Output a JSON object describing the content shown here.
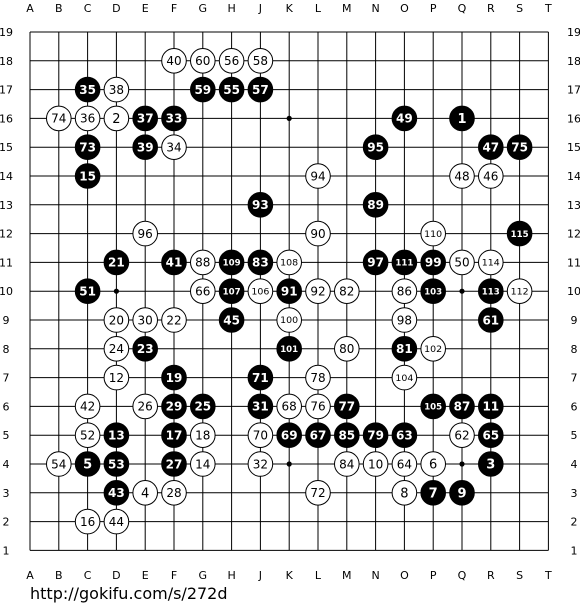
{
  "board": {
    "columns": [
      "A",
      "B",
      "C",
      "D",
      "E",
      "F",
      "G",
      "H",
      "J",
      "K",
      "L",
      "M",
      "N",
      "O",
      "P",
      "Q",
      "R",
      "S",
      "T"
    ],
    "rows": [
      "19",
      "18",
      "17",
      "16",
      "15",
      "14",
      "13",
      "12",
      "11",
      "10",
      "9",
      "8",
      "7",
      "6",
      "5",
      "4",
      "3",
      "2",
      "1"
    ],
    "colors": {
      "line": "#000000",
      "black_stone": "#000000",
      "white_stone": "#ffffff",
      "black_text": "#ffffff",
      "white_text": "#000000"
    },
    "hoshi": [
      [
        3,
        3
      ],
      [
        9,
        3
      ],
      [
        15,
        3
      ],
      [
        3,
        9
      ],
      [
        9,
        9
      ],
      [
        15,
        9
      ],
      [
        3,
        15
      ],
      [
        9,
        15
      ],
      [
        15,
        15
      ]
    ],
    "stones": [
      {
        "col": "C",
        "row": "17",
        "color": "black",
        "label": "35"
      },
      {
        "col": "C",
        "row": "15",
        "color": "black",
        "label": "73"
      },
      {
        "col": "C",
        "row": "14",
        "color": "black",
        "label": "15"
      },
      {
        "col": "C",
        "row": "10",
        "color": "black",
        "label": "51"
      },
      {
        "col": "C",
        "row": "4",
        "color": "black",
        "label": "5"
      },
      {
        "col": "D",
        "row": "11",
        "color": "black",
        "label": "21"
      },
      {
        "col": "D",
        "row": "5",
        "color": "black",
        "label": "13"
      },
      {
        "col": "D",
        "row": "4",
        "color": "black",
        "label": "53"
      },
      {
        "col": "D",
        "row": "3",
        "color": "black",
        "label": "43"
      },
      {
        "col": "E",
        "row": "16",
        "color": "black",
        "label": "37"
      },
      {
        "col": "E",
        "row": "15",
        "color": "black",
        "label": "39"
      },
      {
        "col": "E",
        "row": "8",
        "color": "black",
        "label": "23"
      },
      {
        "col": "F",
        "row": "16",
        "color": "black",
        "label": "33"
      },
      {
        "col": "F",
        "row": "11",
        "color": "black",
        "label": "41"
      },
      {
        "col": "F",
        "row": "7",
        "color": "black",
        "label": "19"
      },
      {
        "col": "F",
        "row": "6",
        "color": "black",
        "label": "29"
      },
      {
        "col": "F",
        "row": "5",
        "color": "black",
        "label": "17"
      },
      {
        "col": "F",
        "row": "4",
        "color": "black",
        "label": "27"
      },
      {
        "col": "G",
        "row": "17",
        "color": "black",
        "label": "59"
      },
      {
        "col": "G",
        "row": "6",
        "color": "black",
        "label": "25"
      },
      {
        "col": "H",
        "row": "17",
        "color": "black",
        "label": "55"
      },
      {
        "col": "H",
        "row": "11",
        "color": "black",
        "label": "109"
      },
      {
        "col": "H",
        "row": "10",
        "color": "black",
        "label": "107"
      },
      {
        "col": "H",
        "row": "9",
        "color": "black",
        "label": "45"
      },
      {
        "col": "J",
        "row": "17",
        "color": "black",
        "label": "57"
      },
      {
        "col": "J",
        "row": "13",
        "color": "black",
        "label": "93"
      },
      {
        "col": "J",
        "row": "11",
        "color": "black",
        "label": "83"
      },
      {
        "col": "J",
        "row": "7",
        "color": "black",
        "label": "71"
      },
      {
        "col": "J",
        "row": "6",
        "color": "black",
        "label": "31"
      },
      {
        "col": "K",
        "row": "10",
        "color": "black",
        "label": "91"
      },
      {
        "col": "K",
        "row": "8",
        "color": "black",
        "label": "101"
      },
      {
        "col": "K",
        "row": "5",
        "color": "black",
        "label": "69"
      },
      {
        "col": "L",
        "row": "5",
        "color": "black",
        "label": "67"
      },
      {
        "col": "M",
        "row": "6",
        "color": "black",
        "label": "77"
      },
      {
        "col": "M",
        "row": "5",
        "color": "black",
        "label": "85"
      },
      {
        "col": "N",
        "row": "15",
        "color": "black",
        "label": "95"
      },
      {
        "col": "N",
        "row": "13",
        "color": "black",
        "label": "89"
      },
      {
        "col": "N",
        "row": "11",
        "color": "black",
        "label": "97"
      },
      {
        "col": "N",
        "row": "5",
        "color": "black",
        "label": "79"
      },
      {
        "col": "O",
        "row": "16",
        "color": "black",
        "label": "49"
      },
      {
        "col": "O",
        "row": "11",
        "color": "black",
        "label": "111"
      },
      {
        "col": "O",
        "row": "8",
        "color": "black",
        "label": "81"
      },
      {
        "col": "O",
        "row": "5",
        "color": "black",
        "label": "63"
      },
      {
        "col": "P",
        "row": "11",
        "color": "black",
        "label": "99"
      },
      {
        "col": "P",
        "row": "10",
        "color": "black",
        "label": "103"
      },
      {
        "col": "P",
        "row": "6",
        "color": "black",
        "label": "105"
      },
      {
        "col": "P",
        "row": "3",
        "color": "black",
        "label": "7"
      },
      {
        "col": "Q",
        "row": "16",
        "color": "black",
        "label": "1"
      },
      {
        "col": "Q",
        "row": "6",
        "color": "black",
        "label": "87"
      },
      {
        "col": "Q",
        "row": "3",
        "color": "black",
        "label": "9"
      },
      {
        "col": "R",
        "row": "15",
        "color": "black",
        "label": "47"
      },
      {
        "col": "R",
        "row": "10",
        "color": "black",
        "label": "113"
      },
      {
        "col": "R",
        "row": "9",
        "color": "black",
        "label": "61"
      },
      {
        "col": "R",
        "row": "6",
        "color": "black",
        "label": "11"
      },
      {
        "col": "R",
        "row": "5",
        "color": "black",
        "label": "65"
      },
      {
        "col": "R",
        "row": "4",
        "color": "black",
        "label": "3"
      },
      {
        "col": "S",
        "row": "15",
        "color": "black",
        "label": "75"
      },
      {
        "col": "S",
        "row": "12",
        "color": "black",
        "label": "115"
      },
      {
        "col": "B",
        "row": "16",
        "color": "white",
        "label": "74"
      },
      {
        "col": "B",
        "row": "4",
        "color": "white",
        "label": "54"
      },
      {
        "col": "C",
        "row": "16",
        "color": "white",
        "label": "36"
      },
      {
        "col": "C",
        "row": "6",
        "color": "white",
        "label": "42"
      },
      {
        "col": "C",
        "row": "5",
        "color": "white",
        "label": "52"
      },
      {
        "col": "C",
        "row": "2",
        "color": "white",
        "label": "16"
      },
      {
        "col": "D",
        "row": "17",
        "color": "white",
        "label": "38"
      },
      {
        "col": "D",
        "row": "16",
        "color": "white",
        "label": "2"
      },
      {
        "col": "D",
        "row": "9",
        "color": "white",
        "label": "20"
      },
      {
        "col": "D",
        "row": "8",
        "color": "white",
        "label": "24"
      },
      {
        "col": "D",
        "row": "7",
        "color": "white",
        "label": "12"
      },
      {
        "col": "D",
        "row": "2",
        "color": "white",
        "label": "44"
      },
      {
        "col": "E",
        "row": "12",
        "color": "white",
        "label": "96"
      },
      {
        "col": "E",
        "row": "9",
        "color": "white",
        "label": "30"
      },
      {
        "col": "E",
        "row": "6",
        "color": "white",
        "label": "26"
      },
      {
        "col": "E",
        "row": "3",
        "color": "white",
        "label": "4"
      },
      {
        "col": "F",
        "row": "18",
        "color": "white",
        "label": "40"
      },
      {
        "col": "F",
        "row": "15",
        "color": "white",
        "label": "34"
      },
      {
        "col": "F",
        "row": "9",
        "color": "white",
        "label": "22"
      },
      {
        "col": "F",
        "row": "3",
        "color": "white",
        "label": "28"
      },
      {
        "col": "G",
        "row": "18",
        "color": "white",
        "label": "60"
      },
      {
        "col": "G",
        "row": "11",
        "color": "white",
        "label": "88"
      },
      {
        "col": "G",
        "row": "10",
        "color": "white",
        "label": "66"
      },
      {
        "col": "G",
        "row": "5",
        "color": "white",
        "label": "18"
      },
      {
        "col": "G",
        "row": "4",
        "color": "white",
        "label": "14"
      },
      {
        "col": "H",
        "row": "18",
        "color": "white",
        "label": "56"
      },
      {
        "col": "J",
        "row": "18",
        "color": "white",
        "label": "58"
      },
      {
        "col": "J",
        "row": "10",
        "color": "white",
        "label": "106"
      },
      {
        "col": "J",
        "row": "5",
        "color": "white",
        "label": "70"
      },
      {
        "col": "J",
        "row": "4",
        "color": "white",
        "label": "32"
      },
      {
        "col": "K",
        "row": "11",
        "color": "white",
        "label": "108"
      },
      {
        "col": "K",
        "row": "9",
        "color": "white",
        "label": "100"
      },
      {
        "col": "K",
        "row": "6",
        "color": "white",
        "label": "68"
      },
      {
        "col": "L",
        "row": "14",
        "color": "white",
        "label": "94"
      },
      {
        "col": "L",
        "row": "12",
        "color": "white",
        "label": "90"
      },
      {
        "col": "L",
        "row": "10",
        "color": "white",
        "label": "92"
      },
      {
        "col": "L",
        "row": "7",
        "color": "white",
        "label": "78"
      },
      {
        "col": "L",
        "row": "6",
        "color": "white",
        "label": "76"
      },
      {
        "col": "L",
        "row": "3",
        "color": "white",
        "label": "72"
      },
      {
        "col": "M",
        "row": "10",
        "color": "white",
        "label": "82"
      },
      {
        "col": "M",
        "row": "8",
        "color": "white",
        "label": "80"
      },
      {
        "col": "M",
        "row": "4",
        "color": "white",
        "label": "84"
      },
      {
        "col": "N",
        "row": "4",
        "color": "white",
        "label": "10"
      },
      {
        "col": "O",
        "row": "10",
        "color": "white",
        "label": "86"
      },
      {
        "col": "O",
        "row": "9",
        "color": "white",
        "label": "98"
      },
      {
        "col": "O",
        "row": "7",
        "color": "white",
        "label": "104"
      },
      {
        "col": "O",
        "row": "4",
        "color": "white",
        "label": "64"
      },
      {
        "col": "O",
        "row": "3",
        "color": "white",
        "label": "8"
      },
      {
        "col": "P",
        "row": "12",
        "color": "white",
        "label": "110"
      },
      {
        "col": "P",
        "row": "8",
        "color": "white",
        "label": "102"
      },
      {
        "col": "P",
        "row": "4",
        "color": "white",
        "label": "6"
      },
      {
        "col": "Q",
        "row": "14",
        "color": "white",
        "label": "48"
      },
      {
        "col": "Q",
        "row": "11",
        "color": "white",
        "label": "50"
      },
      {
        "col": "Q",
        "row": "5",
        "color": "white",
        "label": "62"
      },
      {
        "col": "R",
        "row": "14",
        "color": "white",
        "label": "46"
      },
      {
        "col": "R",
        "row": "11",
        "color": "white",
        "label": "114"
      },
      {
        "col": "S",
        "row": "10",
        "color": "white",
        "label": "112"
      }
    ]
  },
  "footer": {
    "url": "http://gokifu.com/s/272d"
  }
}
